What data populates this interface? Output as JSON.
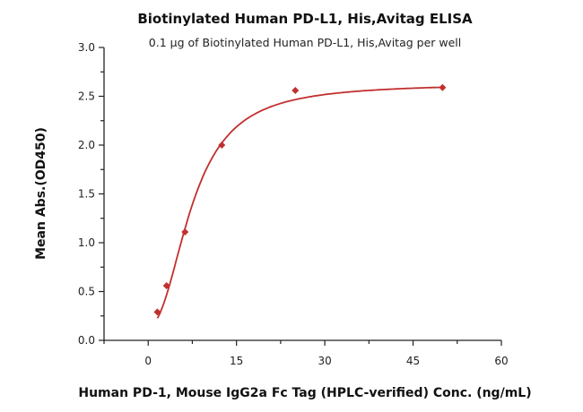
{
  "chart_data": {
    "type": "scatter",
    "title": "Biotinylated Human PD-L1, His,Avitag ELISA",
    "subtitle": "0.1 µg of Biotinylated Human PD-L1, His,Avitag per well",
    "xlabel": "Human PD-1, Mouse IgG2a Fc Tag (HPLC-verified) Conc. (ng/mL)",
    "ylabel": "Mean Abs.(OD450)",
    "xlim": [
      -7.5,
      60
    ],
    "ylim": [
      0,
      3.0
    ],
    "x_ticks": [
      "0",
      "15",
      "30",
      "45",
      "60"
    ],
    "y_ticks": [
      "0.0",
      "0.5",
      "1.0",
      "1.5",
      "2.0",
      "2.5",
      "3.0"
    ],
    "grid": false,
    "legend": "none",
    "color": "#c0302e",
    "series": [
      {
        "x": [
          1.5625,
          3.125,
          6.25,
          12.5,
          25,
          50
        ],
        "y": [
          0.29,
          0.56,
          1.11,
          2.0,
          2.56,
          2.59
        ],
        "marker": "diamond",
        "fit_curve": true
      }
    ]
  }
}
